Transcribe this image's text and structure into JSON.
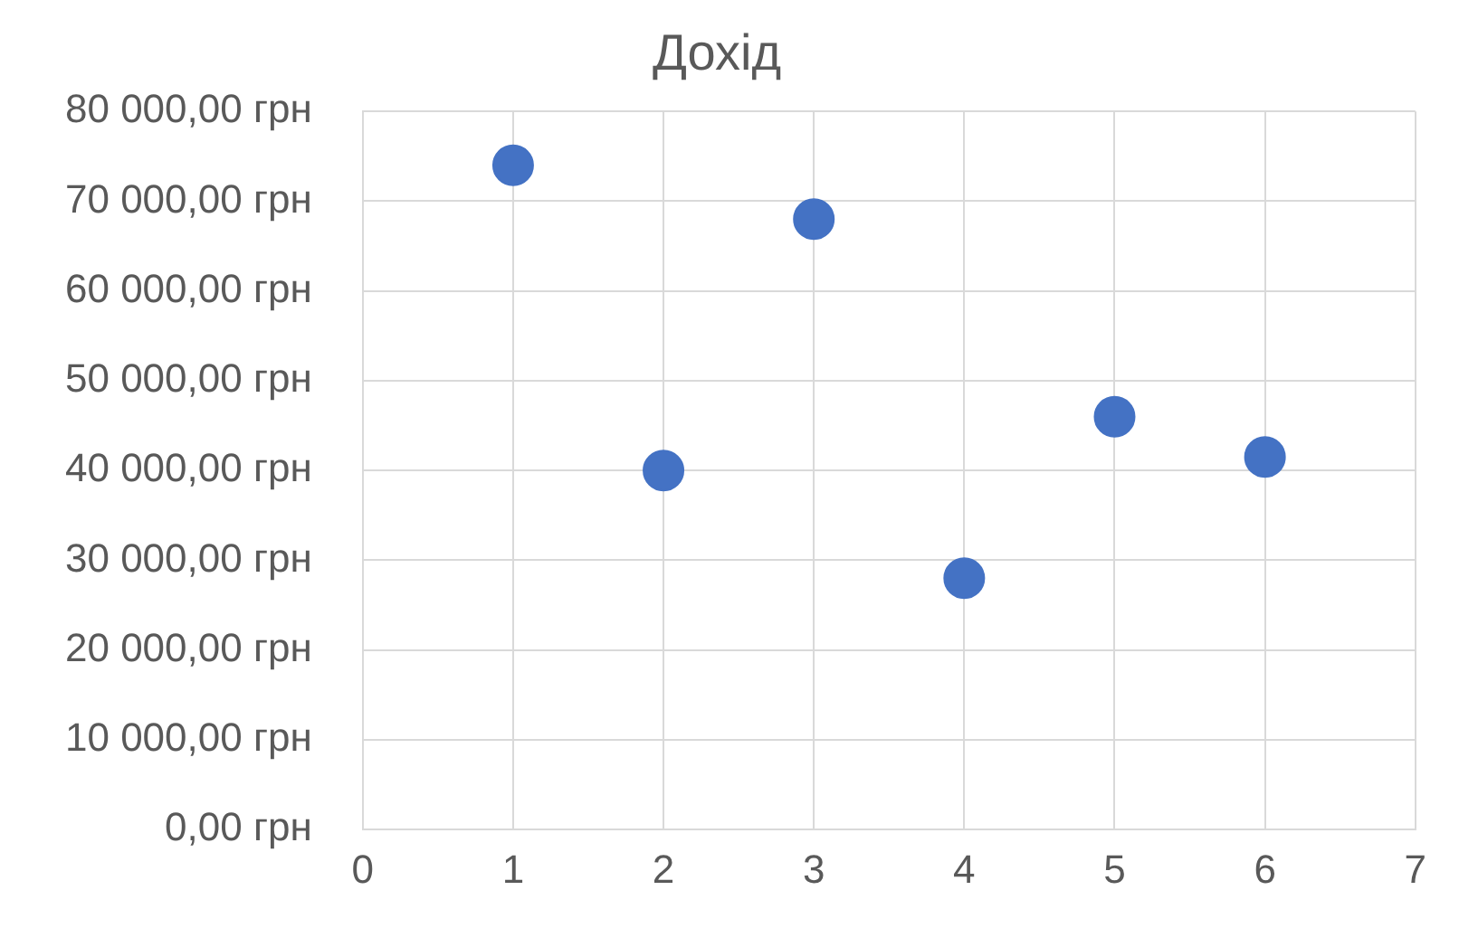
{
  "chart_data": {
    "type": "scatter",
    "title": "Дохід",
    "x": [
      1,
      2,
      3,
      4,
      5,
      6
    ],
    "series": [
      {
        "color": "#4472c4",
        "values": [
          74000,
          40000,
          68000,
          28000,
          46000,
          41500
        ]
      }
    ],
    "xlim": [
      0,
      7
    ],
    "xticks": [
      0,
      1,
      2,
      3,
      4,
      5,
      6,
      7
    ],
    "ylim": [
      0,
      80000
    ],
    "yticks": [
      {
        "value": 0,
        "label": "0,00 грн"
      },
      {
        "value": 10000,
        "label": "10 000,00 грн"
      },
      {
        "value": 20000,
        "label": "20 000,00 грн"
      },
      {
        "value": 30000,
        "label": "30 000,00 грн"
      },
      {
        "value": 40000,
        "label": "40 000,00 грн"
      },
      {
        "value": 50000,
        "label": "50 000,00 грн"
      },
      {
        "value": 60000,
        "label": "60 000,00 грн"
      },
      {
        "value": 70000,
        "label": "70 000,00 грн"
      },
      {
        "value": 80000,
        "label": "80 000,00 грн"
      }
    ],
    "grid": true,
    "marker": "circle",
    "legend": false
  }
}
